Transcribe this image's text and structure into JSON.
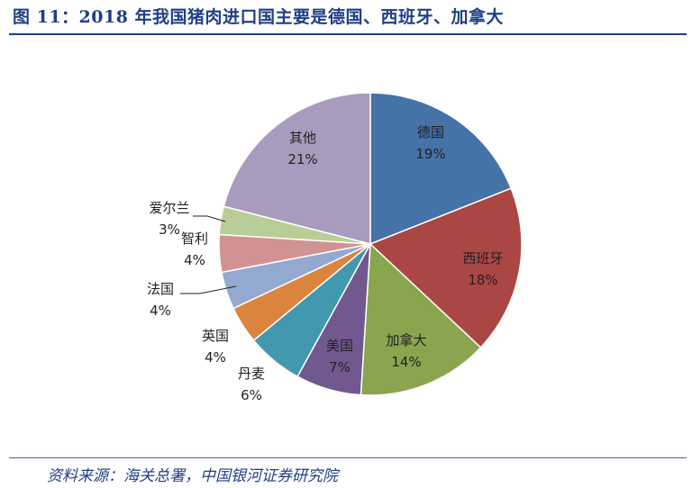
{
  "title": "图 11：2018 年我国猪肉进口国主要是德国、西班牙、加拿大",
  "source": "资料来源：海关总署，中国银河证券研究院",
  "chart_data": {
    "type": "pie",
    "title": "图 11：2018 年我国猪肉进口国主要是德国、西班牙、加拿大",
    "categories": [
      "德国",
      "西班牙",
      "加拿大",
      "美国",
      "丹麦",
      "英国",
      "法国",
      "智利",
      "爱尔兰",
      "其他"
    ],
    "values": [
      19,
      18,
      14,
      7,
      6,
      4,
      4,
      4,
      3,
      21
    ],
    "value_labels": [
      "19%",
      "18%",
      "14%",
      "7%",
      "6%",
      "4%",
      "4%",
      "4%",
      "3%",
      "21%"
    ],
    "colors": [
      "#4572a7",
      "#aa4643",
      "#89a54e",
      "#71588f",
      "#4198af",
      "#db843d",
      "#93a9cf",
      "#d19392",
      "#b9cd96",
      "#a99bbd"
    ],
    "legend": "none"
  }
}
